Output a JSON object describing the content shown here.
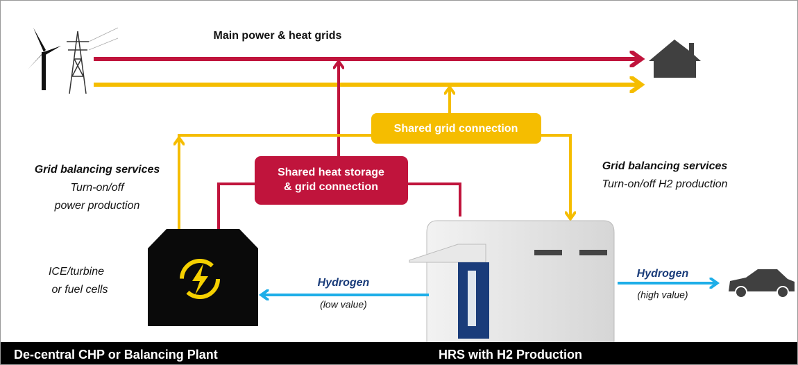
{
  "header": {
    "title": "Main power & heat grids"
  },
  "shared_grid": {
    "label": "Shared grid connection"
  },
  "shared_heat": {
    "lines": [
      "Shared heat storage",
      "& grid connection"
    ]
  },
  "left_services": {
    "title": "Grid balancing services",
    "lines": [
      "Turn-on/off",
      "power production"
    ]
  },
  "right_services": {
    "title": "Grid balancing services",
    "lines": [
      "Turn-on/off H2 production"
    ]
  },
  "plant_note": {
    "lines": [
      "ICE/turbine",
      "or  fuel cells"
    ]
  },
  "flows": [
    {
      "label": "Hydrogen",
      "note": "(low value)"
    },
    {
      "label": "Hydrogen",
      "note": "(high value)"
    }
  ],
  "footer": [
    "De-central CHP or Balancing Plant",
    "HRS with H2 Production"
  ]
}
